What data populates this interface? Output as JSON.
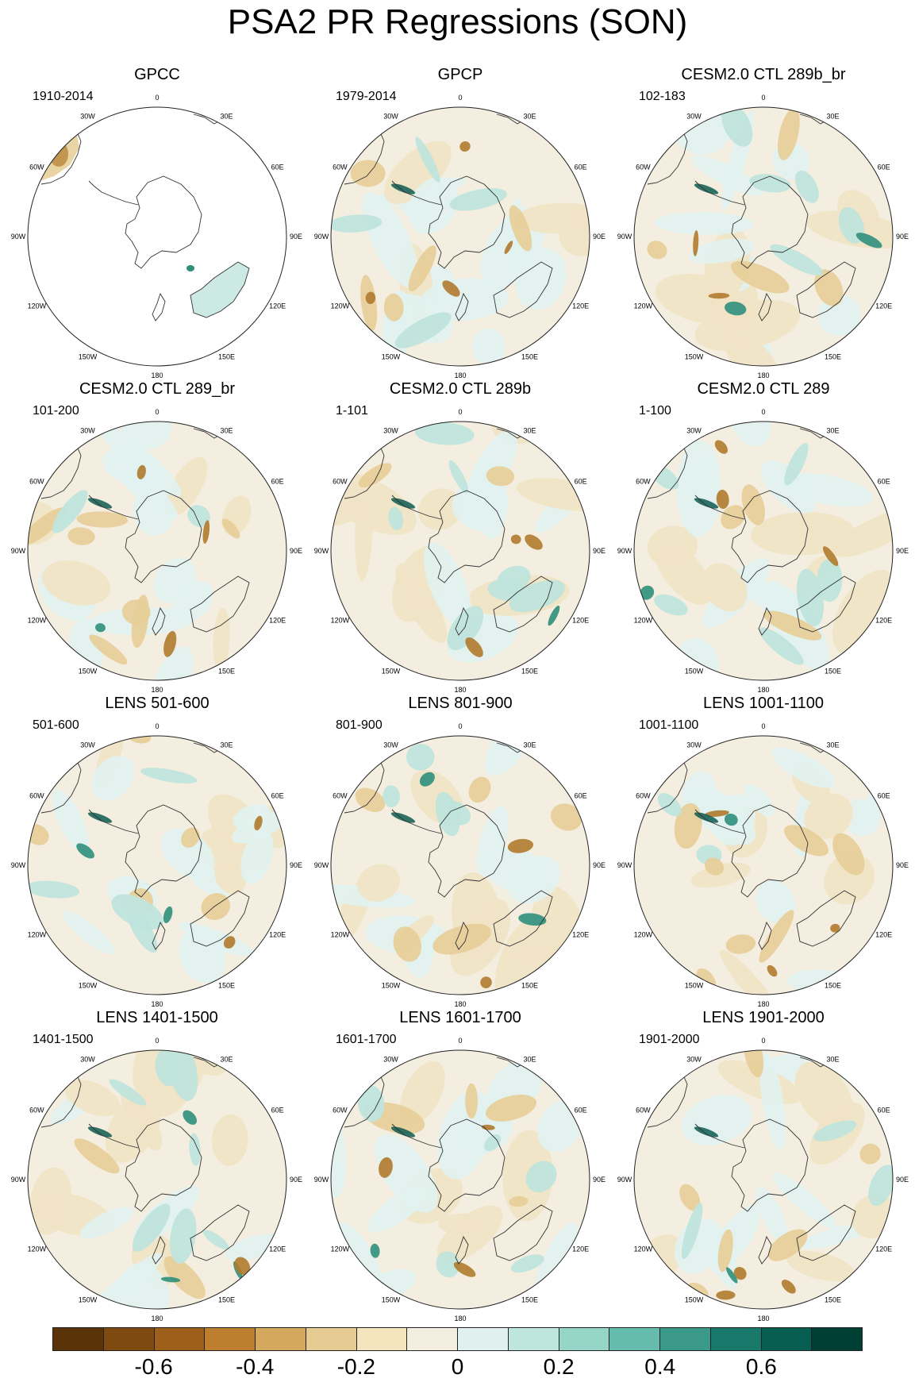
{
  "title": "PSA2 PR Regressions (SON)",
  "lon_labels": [
    "0",
    "30E",
    "60E",
    "90E",
    "120E",
    "150E",
    "180",
    "150W",
    "120W",
    "90W",
    "60W",
    "30W"
  ],
  "panels": [
    {
      "title": "GPCC",
      "years": "1910-2014",
      "land_only": true
    },
    {
      "title": "GPCP",
      "years": "1979-2014",
      "land_only": false
    },
    {
      "title": "CESM2.0 CTL 289b_br",
      "years": "102-183",
      "land_only": false
    },
    {
      "title": "CESM2.0 CTL 289_br",
      "years": "101-200",
      "land_only": false
    },
    {
      "title": "CESM2.0 CTL 289b",
      "years": "1-101",
      "land_only": false
    },
    {
      "title": "CESM2.0 CTL 289",
      "years": "1-100",
      "land_only": false
    },
    {
      "title": "LENS 501-600",
      "years": "501-600",
      "land_only": false
    },
    {
      "title": "LENS 801-900",
      "years": "801-900",
      "land_only": false
    },
    {
      "title": "LENS 1001-1100",
      "years": "1001-1100",
      "land_only": false
    },
    {
      "title": "LENS 1401-1500",
      "years": "1401-1500",
      "land_only": false
    },
    {
      "title": "LENS 1601-1700",
      "years": "1601-1700",
      "land_only": false
    },
    {
      "title": "LENS 1901-2000",
      "years": "1901-2000",
      "land_only": false
    }
  ],
  "colorbar": {
    "colors": [
      "#5a3408",
      "#7e4a10",
      "#9e5f1a",
      "#bd7e30",
      "#d4a95e",
      "#e6cb92",
      "#f5e5bf",
      "#f4eee0",
      "#e0f0ee",
      "#bfe6dd",
      "#96d6c8",
      "#66bcac",
      "#3a9988",
      "#18786a",
      "#075e50",
      "#003f34"
    ],
    "tick_labels": [
      "-0.6",
      "-0.4",
      "-0.2",
      "0",
      "0.2",
      "0.4",
      "0.6"
    ]
  },
  "palette": {
    "coast": "#333333",
    "brown_strong": "#b07a2e",
    "brown_light": "#e7cf9a",
    "teal_strong": "#2f8f7c",
    "teal_light": "#bfe4dc",
    "neutral": "#f4eee0",
    "pale_teal": "#e2f1ef"
  }
}
